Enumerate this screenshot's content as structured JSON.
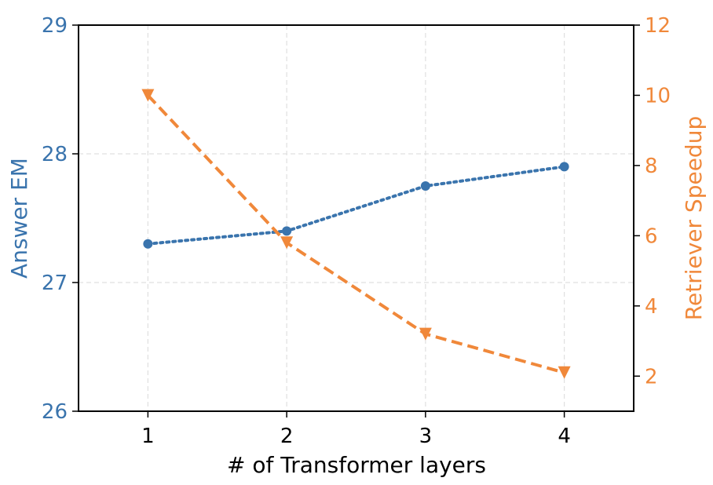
{
  "chart_data": {
    "type": "line",
    "xlabel": "# of Transformer layers",
    "ylabel_left": "Answer EM",
    "ylabel_right": "Retriever Speedup",
    "x": [
      1,
      2,
      3,
      4
    ],
    "xlim": [
      0.5,
      4.5
    ],
    "xticks": [
      "1",
      "2",
      "3",
      "4"
    ],
    "ylim_left": [
      26,
      29
    ],
    "yticks_left": [
      "26",
      "27",
      "28",
      "29"
    ],
    "ylim_right": [
      1,
      12
    ],
    "yticks_right": [
      "2",
      "4",
      "6",
      "8",
      "10",
      "12"
    ],
    "grid": true,
    "series": [
      {
        "axis": "left",
        "values": [
          27.3,
          27.4,
          27.75,
          27.9
        ],
        "color": "#3a74ad",
        "line_style": "dotted",
        "marker": "circle"
      },
      {
        "axis": "right",
        "values": [
          10.0,
          5.8,
          3.2,
          2.1
        ],
        "color": "#f0883a",
        "line_style": "dashed",
        "marker": "triangle-down"
      }
    ]
  }
}
